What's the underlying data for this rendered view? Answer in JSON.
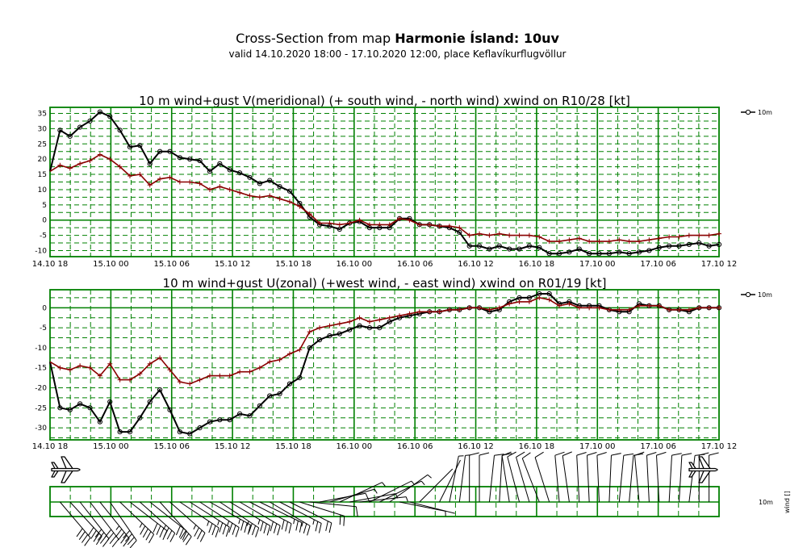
{
  "header": {
    "title_prefix": "Cross-Section from map ",
    "title_model": "Harmonie Ísland: 10uv",
    "subtitle": "valid 14.10.2020 18:00 - 17.10.2020 12:00, place Keflavíkurflugvöllur"
  },
  "colors": {
    "grid": "#008000",
    "wind": "#000000",
    "gust": "#8b0000",
    "frame": "#008000"
  },
  "x_axis": {
    "tick_labels": [
      "14.10 18",
      "15.10 00",
      "15.10 06",
      "15.10 12",
      "15.10 18",
      "16.10 00",
      "16.10 06",
      "16.10 12",
      "16.10 18",
      "17.10 00",
      "17.10 06",
      "17.10 12"
    ],
    "hours_per_major": 6,
    "total_hours": 66
  },
  "chart_data": [
    {
      "type": "line",
      "title": "10 m wind+gust V(meridional) (+ south wind, - north wind) xwind on R10/28 [kt]",
      "ylim": [
        -12,
        37
      ],
      "yticks": [
        -10,
        -5,
        0,
        5,
        10,
        15,
        20,
        25,
        30,
        35
      ],
      "legend": "10m",
      "series": [
        {
          "name": "wind",
          "values": [
            16,
            29.5,
            27.5,
            30.5,
            32.5,
            35.5,
            34,
            29.5,
            24,
            24.5,
            18.5,
            22.5,
            22.5,
            20.5,
            20,
            19.5,
            16,
            18.5,
            16.5,
            15.5,
            14,
            12,
            13,
            11,
            9.5,
            5.5,
            1,
            -1.5,
            -2,
            -3,
            -1,
            -0.5,
            -2.5,
            -2.5,
            -2.5,
            0.5,
            0.5,
            -1.5,
            -1.5,
            -2,
            -2.5,
            -4,
            -8.5,
            -8.5,
            -9.5,
            -8.5,
            -9.5,
            -9.5,
            -8.5,
            -9,
            -11,
            -11,
            -10.5,
            -9.5,
            -11,
            -11,
            -11,
            -10.5,
            -11,
            -10.5,
            -10,
            -9,
            -8.5,
            -8.5,
            -8,
            -7.5,
            -8.5,
            -8
          ]
        },
        {
          "name": "gust",
          "values": [
            16,
            18,
            17,
            18.5,
            19.5,
            21.5,
            20,
            17.5,
            14.5,
            15,
            11.5,
            13.5,
            14,
            12.5,
            12.5,
            12,
            10,
            11,
            10,
            9,
            8,
            7.5,
            8,
            7,
            6,
            4.5,
            2,
            -1,
            -1,
            -1.5,
            -1,
            0,
            -1.5,
            -1.5,
            -1.5,
            0.5,
            0,
            -1.5,
            -1.5,
            -2,
            -2,
            -2.5,
            -5,
            -4.5,
            -5,
            -4.5,
            -5,
            -5,
            -5,
            -5.5,
            -7,
            -7,
            -6.5,
            -6,
            -7,
            -7,
            -7,
            -6.5,
            -7,
            -7,
            -6.5,
            -6,
            -5.5,
            -5.5,
            -5,
            -5,
            -5,
            -4.5
          ]
        }
      ]
    },
    {
      "type": "line",
      "title": "10 m wind+gust U(zonal) (+west wind, - east wind) xwind on R01/19 [kt]",
      "ylim": [
        -33,
        4.5
      ],
      "yticks": [
        -30,
        -25,
        -20,
        -15,
        -10,
        -5,
        0
      ],
      "legend": "10m",
      "series": [
        {
          "name": "wind",
          "values": [
            -13.5,
            -25,
            -25.5,
            -24,
            -25,
            -28.5,
            -23.5,
            -31,
            -31,
            -27.5,
            -23.5,
            -20.5,
            -25.5,
            -31,
            -31.5,
            -30,
            -28.5,
            -28,
            -28,
            -26.5,
            -27,
            -24.5,
            -22,
            -21.5,
            -19,
            -17.5,
            -10,
            -8,
            -7,
            -6.5,
            -5.5,
            -4.5,
            -5,
            -5,
            -3.5,
            -2.5,
            -2,
            -1.5,
            -1,
            -1,
            -0.5,
            -0.5,
            0,
            0,
            -1,
            -0.5,
            1.5,
            2.5,
            2.5,
            3.5,
            3.5,
            1,
            1.5,
            0.5,
            0.5,
            0.5,
            -0.5,
            -1,
            -1,
            1,
            0.5,
            0.5,
            -0.5,
            -0.5,
            -1,
            0,
            0,
            0
          ]
        },
        {
          "name": "gust",
          "values": [
            -13.5,
            -15,
            -15.5,
            -14.5,
            -15,
            -17,
            -14,
            -18,
            -18,
            -16.5,
            -14,
            -12.5,
            -15.5,
            -18.5,
            -19,
            -18,
            -17,
            -17,
            -17,
            -16,
            -16,
            -15,
            -13.5,
            -13,
            -11.5,
            -10.5,
            -6,
            -5,
            -4.5,
            -4,
            -3.5,
            -2.5,
            -3.5,
            -3,
            -2.5,
            -2,
            -1.5,
            -1,
            -1,
            -1,
            -0.5,
            -0.5,
            0,
            0,
            -0.5,
            0,
            1,
            1.5,
            1.5,
            2.5,
            2,
            0.5,
            1,
            0,
            0,
            0,
            -0.5,
            -0.5,
            -0.5,
            0.5,
            0.5,
            0.5,
            -0.5,
            -0.5,
            -0.5,
            0,
            0,
            0
          ]
        }
      ]
    }
  ],
  "barb_strip": {
    "side_label": "10m",
    "units_label": "wind []"
  }
}
